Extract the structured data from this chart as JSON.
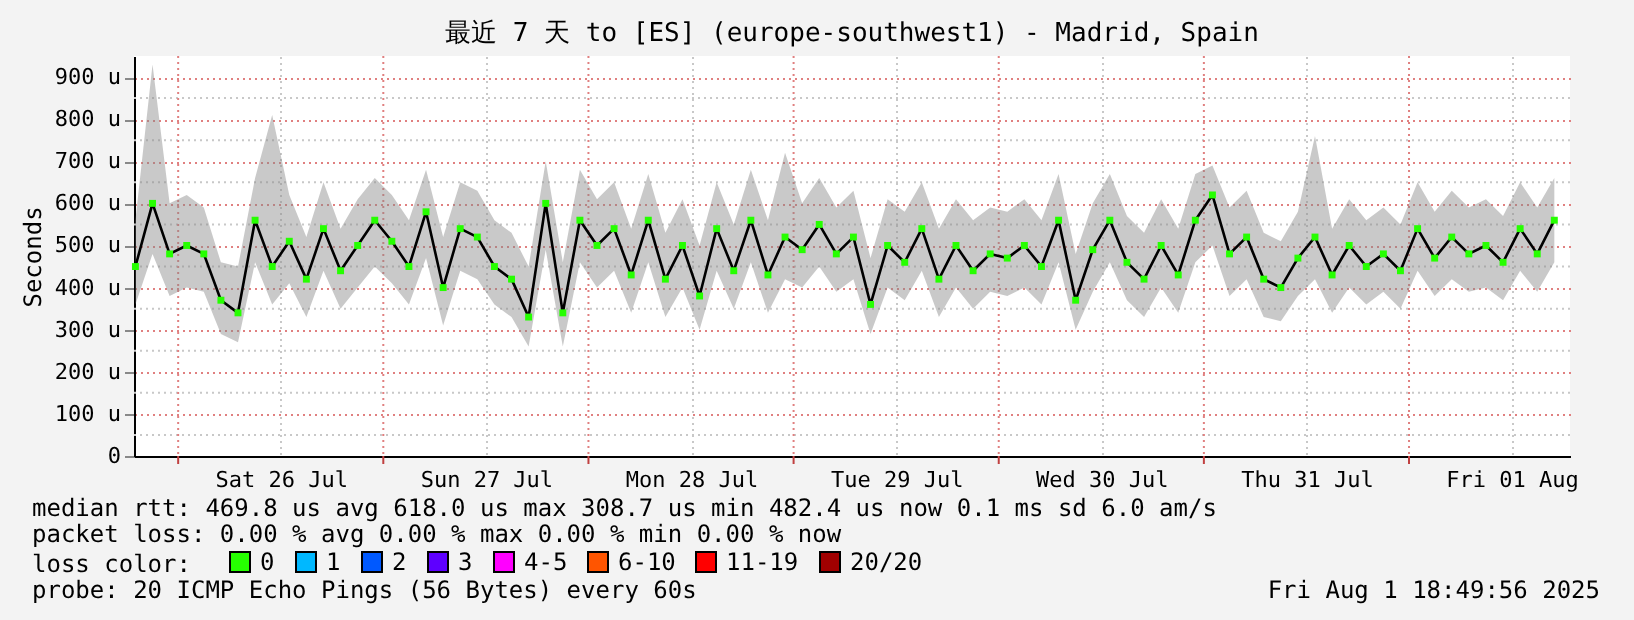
{
  "chart_data": {
    "type": "line",
    "title": "最近 7 天 to [ES] (europe-southwest1) - Madrid, Spain",
    "ylabel": "Seconds",
    "legend_title": "loss color:",
    "legend": "bottom",
    "grid": true,
    "annotations": [
      "median rtt:  469.8 us avg   618.0 us max   308.7 us min   482.4 us now   0.1 ms sd   6.0    am/s",
      "packet loss: 0.00 % avg   0.00 % max   0.00 % min   0.00 % now",
      "probe:       20 ICMP Echo Pings (56 Bytes) every 60s",
      "Fri Aug  1 18:49:56 2025"
    ],
    "xlim": [
      "2025-07-25T18:50",
      "2025-08-01T18:50"
    ],
    "xticks": [
      {
        "value": "2025-07-26T00:00",
        "label": null
      },
      {
        "value": "2025-07-26T12:00",
        "label": "Sat 26 Jul"
      },
      {
        "value": "2025-07-27T00:00",
        "label": null
      },
      {
        "value": "2025-07-27T12:00",
        "label": "Sun 27 Jul"
      },
      {
        "value": "2025-07-28T00:00",
        "label": null
      },
      {
        "value": "2025-07-28T12:00",
        "label": "Mon 28 Jul"
      },
      {
        "value": "2025-07-29T00:00",
        "label": null
      },
      {
        "value": "2025-07-29T12:00",
        "label": "Tue 29 Jul"
      },
      {
        "value": "2025-07-30T00:00",
        "label": null
      },
      {
        "value": "2025-07-30T12:00",
        "label": "Wed 30 Jul"
      },
      {
        "value": "2025-07-31T00:00",
        "label": null
      },
      {
        "value": "2025-07-31T12:00",
        "label": "Thu 31 Jul"
      },
      {
        "value": "2025-08-01T00:00",
        "label": null
      },
      {
        "value": "2025-08-01T12:00",
        "label": "Fri 01 Aug"
      }
    ],
    "ylim": [
      0,
      950
    ],
    "yticks": [
      0,
      {
        "value": 50,
        "label": null
      },
      {
        "value": 100,
        "label": "100 u"
      },
      {
        "value": 150,
        "label": null
      },
      {
        "value": 200,
        "label": "200 u"
      },
      {
        "value": 250,
        "label": null
      },
      {
        "value": 300,
        "label": "300 u"
      },
      {
        "value": 350,
        "label": null
      },
      {
        "value": 400,
        "label": "400 u"
      },
      {
        "value": 450,
        "label": null
      },
      {
        "value": 500,
        "label": "500 u"
      },
      {
        "value": 550,
        "label": null
      },
      {
        "value": 600,
        "label": "600 u"
      },
      {
        "value": 650,
        "label": null
      },
      {
        "value": 700,
        "label": "700 u"
      },
      {
        "value": 750,
        "label": null
      },
      {
        "value": 800,
        "label": "800 u"
      },
      {
        "value": 850,
        "label": null
      },
      {
        "value": 900,
        "label": "900 u"
      }
    ],
    "x": [
      "2025-07-25T19:00",
      "2025-07-25T21:00",
      "2025-07-25T23:00",
      "2025-07-26T01:00",
      "2025-07-26T03:00",
      "2025-07-26T05:00",
      "2025-07-26T07:00",
      "2025-07-26T09:00",
      "2025-07-26T11:00",
      "2025-07-26T13:00",
      "2025-07-26T15:00",
      "2025-07-26T17:00",
      "2025-07-26T19:00",
      "2025-07-26T21:00",
      "2025-07-26T23:00",
      "2025-07-27T01:00",
      "2025-07-27T03:00",
      "2025-07-27T05:00",
      "2025-07-27T07:00",
      "2025-07-27T09:00",
      "2025-07-27T11:00",
      "2025-07-27T13:00",
      "2025-07-27T15:00",
      "2025-07-27T17:00",
      "2025-07-27T19:00",
      "2025-07-27T21:00",
      "2025-07-27T23:00",
      "2025-07-28T01:00",
      "2025-07-28T03:00",
      "2025-07-28T05:00",
      "2025-07-28T07:00",
      "2025-07-28T09:00",
      "2025-07-28T11:00",
      "2025-07-28T13:00",
      "2025-07-28T15:00",
      "2025-07-28T17:00",
      "2025-07-28T19:00",
      "2025-07-28T21:00",
      "2025-07-28T23:00",
      "2025-07-29T01:00",
      "2025-07-29T03:00",
      "2025-07-29T05:00",
      "2025-07-29T07:00",
      "2025-07-29T09:00",
      "2025-07-29T11:00",
      "2025-07-29T13:00",
      "2025-07-29T15:00",
      "2025-07-29T17:00",
      "2025-07-29T19:00",
      "2025-07-29T21:00",
      "2025-07-29T23:00",
      "2025-07-30T01:00",
      "2025-07-30T03:00",
      "2025-07-30T05:00",
      "2025-07-30T07:00",
      "2025-07-30T09:00",
      "2025-07-30T11:00",
      "2025-07-30T13:00",
      "2025-07-30T15:00",
      "2025-07-30T17:00",
      "2025-07-30T19:00",
      "2025-07-30T21:00",
      "2025-07-30T23:00",
      "2025-07-31T01:00",
      "2025-07-31T03:00",
      "2025-07-31T05:00",
      "2025-07-31T07:00",
      "2025-07-31T09:00",
      "2025-07-31T11:00",
      "2025-07-31T13:00",
      "2025-07-31T15:00",
      "2025-07-31T17:00",
      "2025-07-31T19:00",
      "2025-07-31T21:00",
      "2025-07-31T23:00",
      "2025-08-01T01:00",
      "2025-08-01T03:00",
      "2025-08-01T05:00",
      "2025-08-01T07:00",
      "2025-08-01T09:00",
      "2025-08-01T11:00",
      "2025-08-01T13:00",
      "2025-08-01T15:00",
      "2025-08-01T17:00"
    ],
    "series": [
      {
        "color": "#000000",
        "values": [
          450,
          600,
          480,
          500,
          480,
          370,
          340,
          560,
          450,
          510,
          420,
          540,
          440,
          500,
          560,
          510,
          450,
          580,
          400,
          540,
          520,
          450,
          420,
          330,
          600,
          340,
          560,
          500,
          540,
          430,
          560,
          420,
          500,
          380,
          540,
          440,
          560,
          430,
          520,
          490,
          550,
          480,
          520,
          360,
          500,
          460,
          540,
          420,
          500,
          440,
          480,
          470,
          500,
          450,
          560,
          370,
          490,
          560,
          460,
          420,
          500,
          430,
          560,
          620,
          480,
          520,
          420,
          400,
          470,
          520,
          430,
          500,
          450,
          480,
          440,
          540,
          470,
          520,
          480,
          500,
          460,
          540,
          480,
          560
        ],
        "lower": [
          360,
          480,
          380,
          400,
          390,
          290,
          270,
          460,
          360,
          410,
          330,
          440,
          350,
          400,
          450,
          410,
          360,
          470,
          310,
          440,
          420,
          360,
          330,
          260,
          490,
          260,
          460,
          400,
          440,
          340,
          460,
          330,
          400,
          300,
          440,
          350,
          460,
          340,
          420,
          400,
          450,
          390,
          420,
          290,
          400,
          370,
          440,
          330,
          400,
          350,
          390,
          380,
          400,
          360,
          460,
          300,
          390,
          460,
          370,
          330,
          400,
          340,
          460,
          500,
          380,
          420,
          330,
          320,
          380,
          420,
          340,
          400,
          360,
          390,
          350,
          440,
          380,
          420,
          390,
          400,
          370,
          440,
          390,
          460
        ],
        "upper": [
          560,
          930,
          600,
          620,
          590,
          460,
          450,
          660,
          810,
          620,
          520,
          650,
          540,
          610,
          660,
          620,
          560,
          680,
          520,
          650,
          630,
          560,
          530,
          450,
          700,
          460,
          680,
          610,
          650,
          540,
          670,
          530,
          610,
          500,
          650,
          550,
          680,
          560,
          720,
          600,
          660,
          590,
          630,
          470,
          610,
          580,
          650,
          540,
          610,
          560,
          590,
          580,
          610,
          560,
          670,
          480,
          600,
          670,
          570,
          530,
          610,
          540,
          670,
          690,
          590,
          630,
          530,
          510,
          580,
          760,
          540,
          610,
          560,
          590,
          550,
          650,
          580,
          630,
          590,
          610,
          570,
          650,
          590,
          660
        ]
      },
      {
        "type": "scatter",
        "name": "0",
        "color": "#26ff00",
        "marker": "square",
        "values": [
          450,
          600,
          480,
          500,
          480,
          370,
          340,
          560,
          450,
          510,
          420,
          540,
          440,
          500,
          560,
          510,
          450,
          580,
          400,
          540,
          520,
          450,
          420,
          330,
          600,
          340,
          560,
          500,
          540,
          430,
          560,
          420,
          500,
          380,
          540,
          440,
          560,
          430,
          520,
          490,
          550,
          480,
          520,
          360,
          500,
          460,
          540,
          420,
          500,
          440,
          480,
          470,
          500,
          450,
          560,
          370,
          490,
          560,
          460,
          420,
          500,
          430,
          560,
          620,
          480,
          520,
          420,
          400,
          470,
          520,
          430,
          500,
          450,
          480,
          440,
          540,
          470,
          520,
          480,
          500,
          460,
          540,
          480,
          560
        ]
      },
      {
        "type": "scatter",
        "name": "1",
        "color": "#00b8ff",
        "values": [
          null,
          null,
          null,
          null,
          null,
          null,
          null,
          null,
          null,
          null,
          null,
          null,
          null,
          null,
          null,
          null,
          null,
          null,
          null,
          null,
          null,
          null,
          null,
          null,
          null,
          null,
          null,
          null,
          null,
          null,
          null,
          null,
          null,
          null,
          null,
          null,
          null,
          null,
          null,
          null,
          null,
          null,
          null,
          null,
          null,
          null,
          null,
          null,
          null,
          null,
          null,
          null,
          null,
          null,
          null,
          null,
          null,
          null,
          null,
          null,
          null,
          null,
          null,
          null,
          null,
          null,
          null,
          null,
          null,
          null,
          null,
          null,
          null,
          null,
          null,
          null,
          null,
          null,
          null,
          null,
          null,
          null,
          null,
          null
        ]
      },
      {
        "type": "scatter",
        "name": "2",
        "color": "#0059ff",
        "values": [
          null,
          null,
          null,
          null,
          null,
          null,
          null,
          null,
          null,
          null,
          null,
          null,
          null,
          null,
          null,
          null,
          null,
          null,
          null,
          null,
          null,
          null,
          null,
          null,
          null,
          null,
          null,
          null,
          null,
          null,
          null,
          null,
          null,
          null,
          null,
          null,
          null,
          null,
          null,
          null,
          null,
          null,
          null,
          null,
          null,
          null,
          null,
          null,
          null,
          null,
          null,
          null,
          null,
          null,
          null,
          null,
          null,
          null,
          null,
          null,
          null,
          null,
          null,
          null,
          null,
          null,
          null,
          null,
          null,
          null,
          null,
          null,
          null,
          null,
          null,
          null,
          null,
          null,
          null,
          null,
          null,
          null,
          null,
          null
        ]
      },
      {
        "type": "scatter",
        "name": "3",
        "color": "#5e00ff",
        "values": [
          null,
          null,
          null,
          null,
          null,
          null,
          null,
          null,
          null,
          null,
          null,
          null,
          null,
          null,
          null,
          null,
          null,
          null,
          null,
          null,
          null,
          null,
          null,
          null,
          null,
          null,
          null,
          null,
          null,
          null,
          null,
          null,
          null,
          null,
          null,
          null,
          null,
          null,
          null,
          null,
          null,
          null,
          null,
          null,
          null,
          null,
          null,
          null,
          null,
          null,
          null,
          null,
          null,
          null,
          null,
          null,
          null,
          null,
          null,
          null,
          null,
          null,
          null,
          null,
          null,
          null,
          null,
          null,
          null,
          null,
          null,
          null,
          null,
          null,
          null,
          null,
          null,
          null,
          null,
          null,
          null,
          null,
          null,
          null
        ]
      },
      {
        "type": "scatter",
        "name": "4-5",
        "color": "#ff00ff",
        "values": [
          null,
          null,
          null,
          null,
          null,
          null,
          null,
          null,
          null,
          null,
          null,
          null,
          null,
          null,
          null,
          null,
          null,
          null,
          null,
          null,
          null,
          null,
          null,
          null,
          null,
          null,
          null,
          null,
          null,
          null,
          null,
          null,
          null,
          null,
          null,
          null,
          null,
          null,
          null,
          null,
          null,
          null,
          null,
          null,
          null,
          null,
          null,
          null,
          null,
          null,
          null,
          null,
          null,
          null,
          null,
          null,
          null,
          null,
          null,
          null,
          null,
          null,
          null,
          null,
          null,
          null,
          null,
          null,
          null,
          null,
          null,
          null,
          null,
          null,
          null,
          null,
          null,
          null,
          null,
          null,
          null,
          null,
          null,
          null
        ]
      },
      {
        "type": "scatter",
        "name": "6-10",
        "color": "#ff5500",
        "values": [
          null,
          null,
          null,
          null,
          null,
          null,
          null,
          null,
          null,
          null,
          null,
          null,
          null,
          null,
          null,
          null,
          null,
          null,
          null,
          null,
          null,
          null,
          null,
          null,
          null,
          null,
          null,
          null,
          null,
          null,
          null,
          null,
          null,
          null,
          null,
          null,
          null,
          null,
          null,
          null,
          null,
          null,
          null,
          null,
          null,
          null,
          null,
          null,
          null,
          null,
          null,
          null,
          null,
          null,
          null,
          null,
          null,
          null,
          null,
          null,
          null,
          null,
          null,
          null,
          null,
          null,
          null,
          null,
          null,
          null,
          null,
          null,
          null,
          null,
          null,
          null,
          null,
          null,
          null,
          null,
          null,
          null,
          null,
          null
        ]
      },
      {
        "type": "scatter",
        "name": "11-19",
        "color": "#ff0000",
        "values": [
          null,
          null,
          null,
          null,
          null,
          null,
          null,
          null,
          null,
          null,
          null,
          null,
          null,
          null,
          null,
          null,
          null,
          null,
          null,
          null,
          null,
          null,
          null,
          null,
          null,
          null,
          null,
          null,
          null,
          null,
          null,
          null,
          null,
          null,
          null,
          null,
          null,
          null,
          null,
          null,
          null,
          null,
          null,
          null,
          null,
          null,
          null,
          null,
          null,
          null,
          null,
          null,
          null,
          null,
          null,
          null,
          null,
          null,
          null,
          null,
          null,
          null,
          null,
          null,
          null,
          null,
          null,
          null,
          null,
          null,
          null,
          null,
          null,
          null,
          null,
          null,
          null,
          null,
          null,
          null,
          null,
          null,
          null,
          null
        ]
      },
      {
        "type": "scatter",
        "name": "20/20",
        "color": "#a10000",
        "values": [
          null,
          null,
          null,
          null,
          null,
          null,
          null,
          null,
          null,
          null,
          null,
          null,
          null,
          null,
          null,
          null,
          null,
          null,
          null,
          null,
          null,
          null,
          null,
          null,
          null,
          null,
          null,
          null,
          null,
          null,
          null,
          null,
          null,
          null,
          null,
          null,
          null,
          null,
          null,
          null,
          null,
          null,
          null,
          null,
          null,
          null,
          null,
          null,
          null,
          null,
          null,
          null,
          null,
          null,
          null,
          null,
          null,
          null,
          null,
          null,
          null,
          null,
          null,
          null,
          null,
          null,
          null,
          null,
          null,
          null,
          null,
          null,
          null,
          null,
          null,
          null,
          null,
          null,
          null,
          null,
          null,
          null,
          null,
          null
        ]
      }
    ]
  }
}
